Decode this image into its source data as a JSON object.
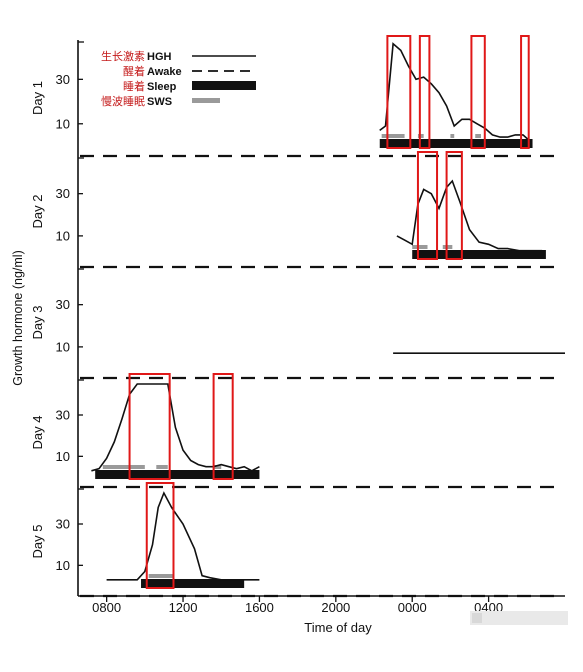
{
  "chart_data": {
    "type": "line",
    "ylabel": "Growth hormone (ng/ml)",
    "xlabel": "Time of day",
    "x_ticks": [
      "0800",
      "1200",
      "1600",
      "2000",
      "0000",
      "0400"
    ],
    "x_tick_hours": [
      8,
      12,
      16,
      20,
      24,
      28
    ],
    "xlim": [
      6.5,
      32
    ],
    "y_ticks": [
      10,
      30
    ],
    "ylim": [
      0,
      45
    ],
    "legend": {
      "placement": "top-left",
      "items": [
        {
          "cn": "生长激素",
          "en": "HGH",
          "style": "solid"
        },
        {
          "cn": "醒着",
          "en": "Awake",
          "style": "dashed"
        },
        {
          "cn": "睡着",
          "en": "Sleep",
          "style": "bar"
        },
        {
          "cn": "慢波睡眠",
          "en": "SWS",
          "style": "grey-bar"
        }
      ]
    },
    "colors": {
      "curve": "#111111",
      "highlight": "#e01818",
      "sws": "#9a9a9a"
    },
    "panels": [
      {
        "day": "Day 1",
        "hgh": {
          "x": [
            22.3,
            22.6,
            23.0,
            23.4,
            23.8,
            24.2,
            24.6,
            25.0,
            25.4,
            25.8,
            26.2,
            26.6,
            27.0,
            27.4,
            27.8,
            28.2,
            28.6,
            29.0,
            29.4,
            29.8,
            30.2
          ],
          "y": [
            7,
            9,
            46,
            43,
            36,
            30,
            31,
            28,
            24,
            18,
            9,
            12,
            12,
            10,
            8,
            5,
            4,
            4,
            5,
            5,
            2
          ]
        },
        "sleep": [
          22.3,
          30.3
        ],
        "sws": [
          [
            22.4,
            23.6
          ],
          [
            24.3,
            24.6
          ],
          [
            26.0,
            26.2
          ],
          [
            27.3,
            27.6
          ]
        ],
        "highlights": [
          [
            22.7,
            23.9
          ],
          [
            24.4,
            24.9
          ],
          [
            27.1,
            27.8
          ],
          [
            29.7,
            30.1
          ]
        ]
      },
      {
        "day": "Day 2",
        "hgh": {
          "x": [
            23.2,
            23.6,
            24.0,
            24.3,
            24.6,
            25.0,
            25.4,
            25.8,
            26.1,
            26.5,
            27.0,
            27.5,
            28.0,
            28.5,
            29.0,
            29.6,
            30.2,
            30.8
          ],
          "y": [
            10,
            8,
            6,
            25,
            32,
            30,
            23,
            33,
            36,
            26,
            13,
            7,
            6,
            4,
            4,
            3,
            3,
            3
          ]
        },
        "sleep": [
          24.0,
          31.0
        ],
        "sws": [
          [
            24.0,
            24.8
          ],
          [
            25.6,
            26.1
          ]
        ],
        "highlights": [
          [
            24.3,
            25.3
          ],
          [
            25.8,
            26.6
          ]
        ]
      },
      {
        "day": "Day 3",
        "hgh": {
          "x": [
            23.0,
            25.0,
            27.0,
            29.0,
            31.0,
            32.0
          ],
          "y": [
            7,
            7,
            7,
            7,
            7,
            7
          ]
        },
        "sleep": null,
        "sws": [],
        "highlights": []
      },
      {
        "day": "Day 4",
        "hgh": {
          "x": [
            7.2,
            7.6,
            8.0,
            8.4,
            8.8,
            9.2,
            9.6,
            10.0,
            10.4,
            10.8,
            11.2,
            11.6,
            12.0,
            12.4,
            12.8,
            13.2,
            13.6,
            14.0,
            14.4,
            14.8,
            15.2,
            15.6,
            16.0
          ],
          "y": [
            3,
            4,
            9,
            17,
            28,
            40,
            45,
            45,
            45,
            45,
            45,
            24,
            13,
            8,
            6,
            5,
            5,
            6,
            5,
            4,
            5,
            3,
            5
          ]
        },
        "sleep": [
          7.4,
          16.0
        ],
        "sws": [
          [
            7.8,
            10.0
          ],
          [
            10.6,
            11.2
          ],
          [
            13.6,
            14.0
          ]
        ],
        "highlights": [
          [
            9.2,
            11.3
          ],
          [
            13.6,
            14.6
          ]
        ]
      },
      {
        "day": "Day 5",
        "hgh": {
          "x": [
            8.0,
            8.8,
            9.6,
            10.0,
            10.4,
            10.7,
            11.0,
            11.4,
            12.0,
            12.6,
            13.0,
            13.4,
            14.0,
            15.0,
            16.0
          ],
          "y": [
            3,
            3,
            3,
            7,
            20,
            38,
            45,
            38,
            30,
            18,
            5,
            4,
            3,
            3,
            3
          ]
        },
        "sleep": [
          9.8,
          15.2
        ],
        "sws": [
          [
            10.2,
            11.5
          ]
        ],
        "highlights": [
          [
            10.1,
            11.5
          ]
        ]
      }
    ]
  }
}
